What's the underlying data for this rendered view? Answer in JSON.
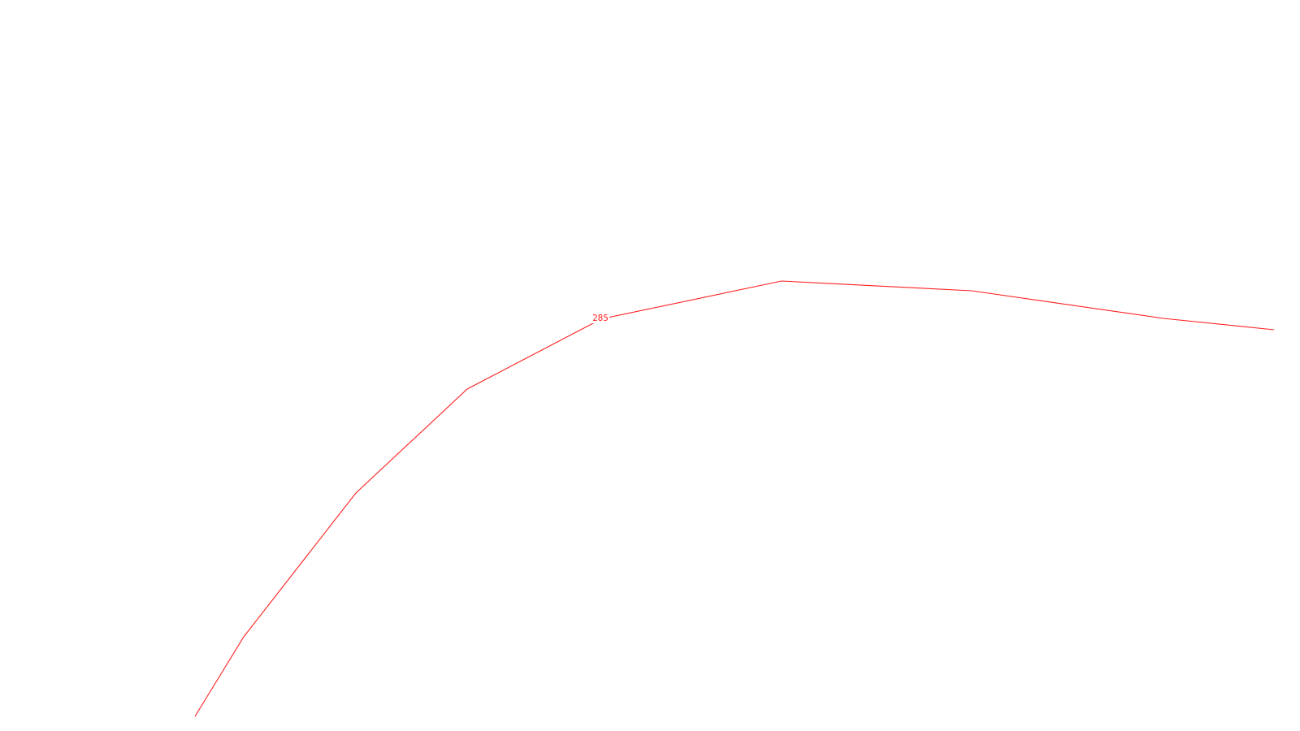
{
  "map": {
    "background_color": "#ffffff",
    "contour": {
      "elevation_label": "285",
      "color": "#ff2020"
    }
  }
}
